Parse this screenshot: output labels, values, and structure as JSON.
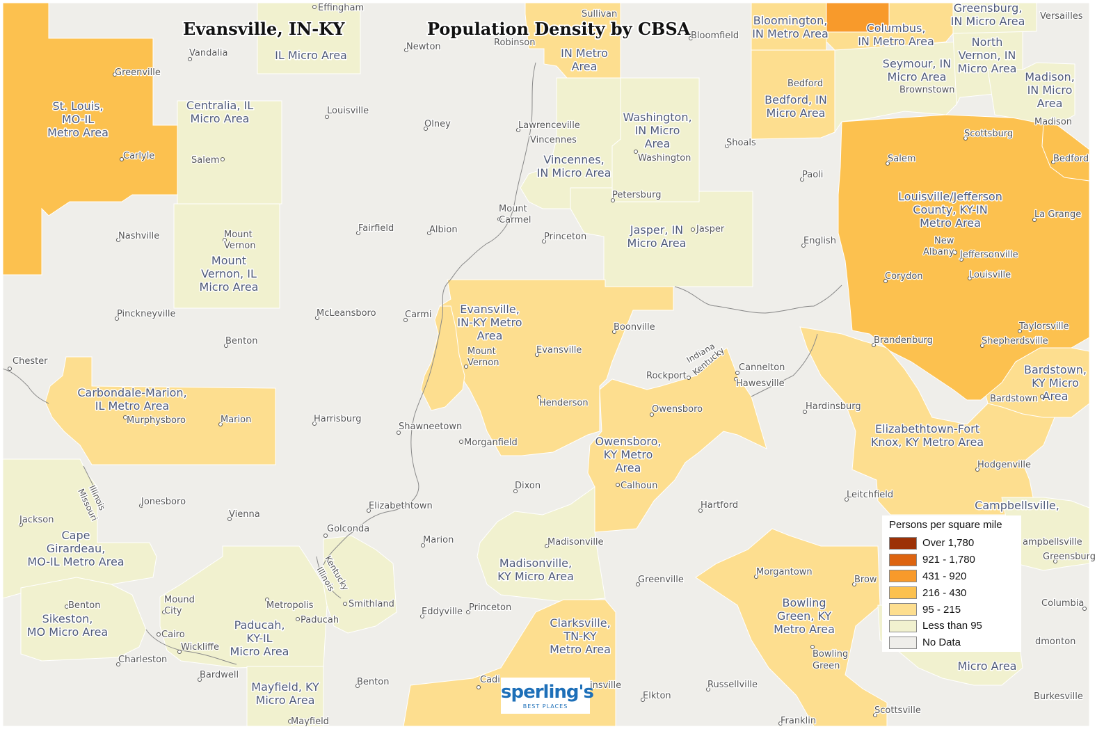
{
  "title_left": "Evansville, IN-KY",
  "title_right": "Population Density by CBSA",
  "legend": {
    "title": "Persons per square mile",
    "items": [
      {
        "label": "Over 1,780",
        "color": "#9c3106"
      },
      {
        "label": "921 - 1,780",
        "color": "#dd6410"
      },
      {
        "label": "431 - 920",
        "color": "#f89a2b"
      },
      {
        "label": "216 - 430",
        "color": "#fcc14f"
      },
      {
        "label": "95 - 215",
        "color": "#fdde8f"
      },
      {
        "label": "Less than 95",
        "color": "#f1f1cf"
      },
      {
        "label": "No Data",
        "color": "#efeeea"
      }
    ]
  },
  "logo": {
    "main": "sperling's",
    "sub": "BEST PLACES"
  },
  "areas": {
    "stlouis": "St. Louis, MO-IL Metro Area",
    "effingham": "IL Micro Area",
    "terrehaute": "Terre Haute, IN Metro Area",
    "centralia": "Centralia, IL Micro Area",
    "mtvernonil": "Mount Vernon, IL Micro Area",
    "vincennes": "Vincennes, IN Micro Area",
    "washington": "Washington, IN Micro Area",
    "jasper": "Jasper, IN Micro Area",
    "evansville": "Evansville, IN-KY Metro Area",
    "owensboro": "Owensboro, KY Metro Area",
    "carbondale": "Carbondale-Marion, IL Metro Area",
    "capegirardeau": "Cape Girardeau, MO-IL Metro Area",
    "sikeston": "Sikeston, MO Micro Area",
    "paducah": "Paducah, KY-IL Micro Area",
    "mayfield": "Mayfield, KY Micro Area",
    "madisonville": "Madisonville, KY Micro Area",
    "clarksville": "Clarksville, TN-KY Metro Area",
    "bowlinggreen": "Bowling Green, KY Metro Area",
    "glasgow": "Glasgow, KY Micro Area",
    "campbellsville": "Campbellsville, KY Micro Area",
    "elizabethtown": "Elizabethtown-Fort Knox, KY Metro Area",
    "bardstown": "Bardstown, KY Micro Area",
    "louisville": "Louisville/Jefferson County, KY-IN Metro Area",
    "bedford": "Bedford, IN Micro Area",
    "bloomington": "Bloomington, IN Metro Area",
    "columbus": "Columbus, IN Metro Area",
    "seymour": "Seymour, IN Micro Area",
    "northvernon": "North Vernon, IN Micro Area",
    "greensburg": "Greensburg, IN Micro Area",
    "madison": "Madison, IN Micro Area"
  },
  "states": {
    "indiana": "Indiana",
    "kentucky": "Kentucky",
    "illinois": "Illinois",
    "missouri": "Missouri"
  },
  "cities": {
    "effingham": "Effingham",
    "sullivan": "Sullivan",
    "vandalia": "Vandalia",
    "newton": "Newton",
    "robinson": "Robinson",
    "bloomfield": "Bloomfield",
    "versailles": "Versailles",
    "greenville_il": "Greenville",
    "carlyle": "Carlyle",
    "salem_il": "Salem",
    "louisville_il": "Louisville",
    "olney": "Olney",
    "lawrenceville": "Lawrenceville",
    "vincennes": "Vincennes",
    "washington": "Washington",
    "shoals": "Shoals",
    "paoli": "Paoli",
    "petersburg": "Petersburg",
    "jasper": "Jasper",
    "nashville": "Nashville",
    "mtvernon_il_1": "Mount",
    "mtvernon_il_2": "Vernon",
    "fairfield": "Fairfield",
    "albion": "Albion",
    "mtcarmel_1": "Mount",
    "mtcarmel_2": "Carmel",
    "princeton_in": "Princeton",
    "english": "English",
    "pinckneyville": "Pinckneyville",
    "mcleansboro": "McLeansboro",
    "carmi": "Carmi",
    "boonville": "Boonville",
    "benton_il": "Benton",
    "mtvernon_in_1": "Mount",
    "mtvernon_in_2": "Vernon",
    "evansville": "Evansville",
    "rockport": "Rockport",
    "cannelton": "Cannelton",
    "hawesville": "Hawesville",
    "chester": "Chester",
    "murphysboro": "Murphysboro",
    "marion_il": "Marion",
    "harrisburg": "Harrisburg",
    "shawneetown": "Shawneetown",
    "henderson": "Henderson",
    "owensboro": "Owensboro",
    "hardinsburg": "Hardinsburg",
    "morganfield": "Morganfield",
    "jonesboro": "Jonesboro",
    "vienna": "Vienna",
    "elizabethtown_il": "Elizabethtown",
    "dixon": "Dixon",
    "calhoun": "Calhoun",
    "hartford": "Hartford",
    "leitchfield": "Leitchfield",
    "jackson": "Jackson",
    "golconda": "Golconda",
    "marion_ky": "Marion",
    "madisonville": "Madisonville",
    "greenville_ky": "Greenville",
    "morgantown": "Morgantown",
    "brownsville": "Brow",
    "benton_mo": "Benton",
    "mtcity_1": "Mound",
    "mtcity_2": "City",
    "metropolis": "Metropolis",
    "paducah": "Paducah",
    "smithland": "Smithland",
    "eddyville": "Eddyville",
    "princeton_ky": "Princeton",
    "cairo": "Cairo",
    "wickliffe": "Wickliffe",
    "charleston": "Charleston",
    "bardwell": "Bardwell",
    "benton_ky": "Benton",
    "cadiz": "Cadi",
    "hopkinsville": "insville",
    "elkton": "Elkton",
    "russellville": "Russellville",
    "bowlinggreen_1": "Bowling",
    "bowlinggreen_2": "Green",
    "scottsville": "Scottsville",
    "franklin": "Franklin",
    "mayfield": "Mayfield",
    "salem_in": "Salem",
    "scottsburg": "Scottsburg",
    "madison": "Madison",
    "bedford_ky": "Bedford",
    "lagrange": "La Grange",
    "newalbany_1": "New",
    "newalbany_2": "Albany",
    "jeffersonville": "Jeffersonville",
    "corydon": "Corydon",
    "louisville_ky": "Louisville",
    "taylorsville": "Taylorsville",
    "brandenburg": "Brandenburg",
    "shepherdsville": "Shepherdsville",
    "bardstown": "Bardstown",
    "hodgenville": "Hodgenville",
    "campbellsville": "ampbellsville",
    "greensburg_ky": "Greensburg",
    "columbia": "Columbia",
    "edmonton": "dmonton",
    "burkesville": "Burkesville",
    "bedford_in": "Bedford",
    "brownstown": "Brownstown"
  }
}
